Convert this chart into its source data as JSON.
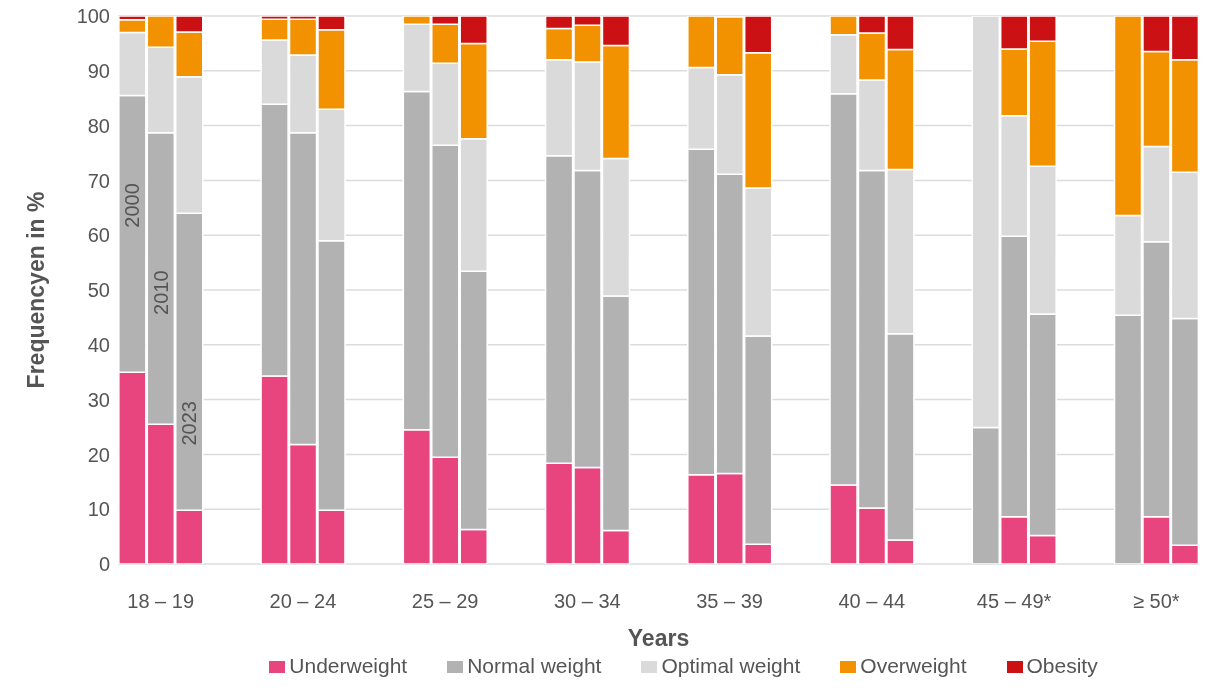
{
  "chart_data": {
    "type": "bar",
    "stacked": true,
    "xlabel": "Years",
    "ylabel": "Frequencyen in %",
    "categories": [
      null,
      "18 – 19",
      null,
      null,
      null,
      null,
      "20 – 24",
      null,
      null,
      null,
      null,
      "25 – 29",
      null,
      null,
      null,
      null,
      "30 – 34",
      null,
      null,
      null,
      null,
      "35 – 39",
      null,
      null,
      null,
      null,
      "40 – 44",
      null,
      null,
      null,
      null,
      "45 – 49*",
      null,
      null,
      null,
      null,
      "≥ 50*",
      null
    ],
    "series": [
      {
        "name": "Underweight",
        "color": "#e8457f",
        "values": [
          35,
          25.5,
          9.8,
          null,
          null,
          34.3,
          21.8,
          9.8,
          null,
          null,
          24.5,
          19.5,
          6.3,
          null,
          null,
          18.4,
          17.6,
          6.1,
          null,
          null,
          16.3,
          16.5,
          3.6,
          null,
          null,
          14.4,
          10.2,
          4.4,
          null,
          null,
          0,
          8.6,
          5.2,
          null,
          null,
          0,
          8.6,
          3.4
        ]
      },
      {
        "name": "Normal weight",
        "color": "#b2b2b2",
        "values": [
          50.5,
          53.2,
          54.2,
          null,
          null,
          49.6,
          56.9,
          49.2,
          null,
          null,
          61.7,
          56.9,
          47.1,
          null,
          null,
          56.1,
          54.2,
          42.8,
          null,
          null,
          59.4,
          54.6,
          38,
          null,
          null,
          71.4,
          61.6,
          37.6,
          null,
          null,
          24.9,
          51.2,
          40.4,
          null,
          null,
          45.4,
          50.2,
          41.4
        ]
      },
      {
        "name": "Optimal weight",
        "color": "#dadada",
        "values": [
          11.5,
          15.6,
          24.9,
          null,
          null,
          11.7,
          14.2,
          24,
          null,
          null,
          12.3,
          15,
          24.2,
          null,
          null,
          17.5,
          19.8,
          25.1,
          null,
          null,
          14.9,
          18.2,
          27,
          null,
          null,
          10.8,
          16.5,
          30,
          null,
          null,
          75.1,
          22,
          27,
          null,
          null,
          18.2,
          17.4,
          26.7
        ]
      },
      {
        "name": "Overweight",
        "color": "#f39200",
        "values": [
          2.3,
          5.7,
          8.2,
          null,
          null,
          3.8,
          6.5,
          14.5,
          null,
          null,
          1.5,
          7.1,
          17.4,
          null,
          null,
          5.7,
          6.7,
          20.6,
          null,
          null,
          9.4,
          10.5,
          24.7,
          null,
          null,
          3.4,
          8.6,
          21.9,
          null,
          null,
          0,
          12.2,
          22.8,
          null,
          null,
          36.4,
          17.3,
          20.5
        ]
      },
      {
        "name": "Obesity",
        "color": "#cc1114",
        "values": [
          0.7,
          0,
          2.9,
          null,
          null,
          0.6,
          0.6,
          2.5,
          null,
          null,
          0,
          1.5,
          5,
          null,
          null,
          2.3,
          1.7,
          5.4,
          null,
          null,
          0,
          null,
          6.7,
          null,
          null,
          0,
          3.1,
          6.1,
          null,
          null,
          0,
          6,
          4.6,
          null,
          null,
          0,
          6.5,
          8
        ]
      }
    ],
    "ylim": [
      0,
      100
    ],
    "yticks": [
      0,
      10,
      20,
      30,
      40,
      50,
      60,
      70,
      80,
      90,
      100
    ],
    "grid": "y",
    "legend": "bottom",
    "annotations": [
      "2000",
      "2010",
      "2023"
    ]
  }
}
